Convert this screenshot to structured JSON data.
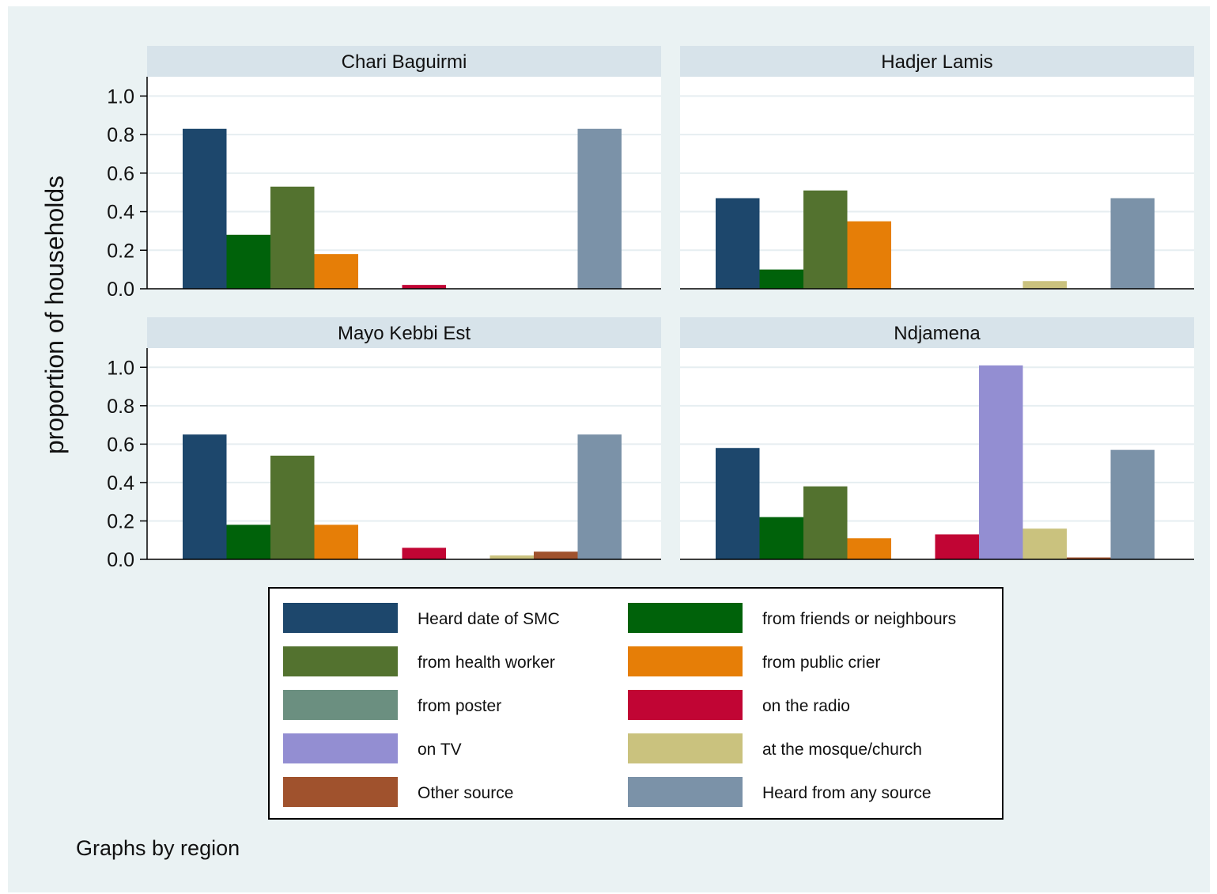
{
  "chart_data": {
    "type": "bar",
    "ylabel": "proportion of households",
    "note": "Graphs by region",
    "ylim": [
      0,
      1.1
    ],
    "yticks": [
      "0.0",
      "0.2",
      "0.4",
      "0.6",
      "0.8",
      "1.0"
    ],
    "ytick_values": [
      0,
      0.2,
      0.4,
      0.6,
      0.8,
      1.0
    ],
    "grid": true,
    "legend_position": "bottom",
    "series": [
      {
        "name": "Heard date of SMC",
        "color": "#1d476c"
      },
      {
        "name": "from friends or neighbours",
        "color": "#00620a"
      },
      {
        "name": "from health worker",
        "color": "#53722f"
      },
      {
        "name": "from public crier",
        "color": "#e67e07"
      },
      {
        "name": "from poster",
        "color": "#6b8f80"
      },
      {
        "name": "on the radio",
        "color": "#c10534"
      },
      {
        "name": "on TV",
        "color": "#938ed2"
      },
      {
        "name": "at the mosque/church",
        "color": "#cac27e"
      },
      {
        "name": "Other source",
        "color": "#a0522d"
      },
      {
        "name": "Heard from any source",
        "color": "#7b92a8"
      }
    ],
    "panels": [
      {
        "title": "Chari Baguirmi",
        "values": [
          0.83,
          0.28,
          0.53,
          0.18,
          0,
          0.02,
          0,
          0,
          0,
          0.83
        ]
      },
      {
        "title": "Hadjer Lamis",
        "values": [
          0.47,
          0.1,
          0.51,
          0.35,
          0,
          0,
          0,
          0.04,
          0,
          0.47
        ]
      },
      {
        "title": "Mayo Kebbi Est",
        "values": [
          0.65,
          0.18,
          0.54,
          0.18,
          0,
          0.06,
          0,
          0.02,
          0.04,
          0.65
        ]
      },
      {
        "title": "Ndjamena",
        "values": [
          0.58,
          0.22,
          0.38,
          0.11,
          0,
          0.13,
          1.01,
          0.16,
          0.01,
          0.57
        ]
      }
    ]
  }
}
